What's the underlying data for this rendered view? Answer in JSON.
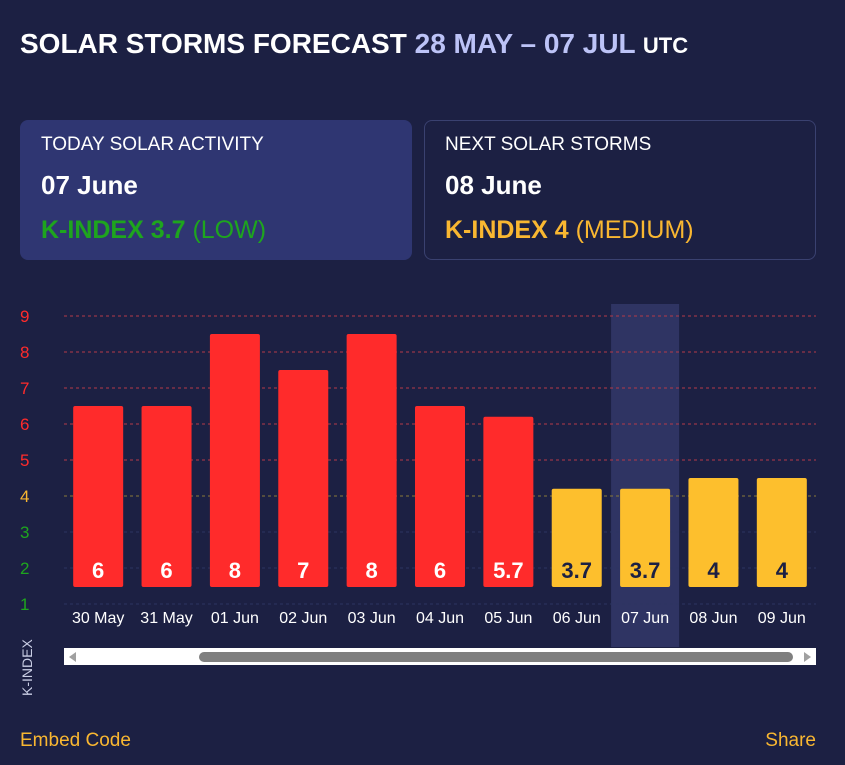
{
  "header": {
    "title": "SOLAR STORMS FORECAST",
    "range": "28 MAY – 07 JUL",
    "tz": "UTC"
  },
  "today_card": {
    "title": "TODAY SOLAR ACTIVITY",
    "date": "07 June",
    "kindex_label": "K-INDEX 3.7",
    "level": "(LOW)",
    "color": "#1ea51e"
  },
  "next_card": {
    "title": "NEXT SOLAR STORMS",
    "date": "08 June",
    "kindex_label": "K-INDEX 4",
    "level": "(MEDIUM)",
    "color": "#f9b731"
  },
  "footer": {
    "embed": "Embed Code",
    "share": "Share"
  },
  "chart_data": {
    "type": "bar",
    "ylabel": "K-INDEX",
    "ylim": [
      1,
      9
    ],
    "yticks": [
      1,
      2,
      3,
      4,
      5,
      6,
      7,
      8,
      9
    ],
    "categories": [
      "30 May",
      "31 May",
      "01 Jun",
      "02 Jun",
      "03 Jun",
      "04 Jun",
      "05 Jun",
      "06 Jun",
      "07 Jun",
      "08 Jun",
      "09 Jun"
    ],
    "values": [
      6,
      6,
      8,
      7,
      8,
      6,
      5.7,
      3.7,
      3.7,
      4,
      4
    ],
    "value_labels": [
      "6",
      "6",
      "8",
      "7",
      "8",
      "6",
      "5.7",
      "3.7",
      "3.7",
      "4",
      "4"
    ],
    "highlighted_category": "07 Jun",
    "colors": {
      "storm": "#ff2b2b",
      "medium": "#fdbf2d",
      "low_tick": "#1ea51e",
      "medium_tick": "#f9b731",
      "high_tick": "#ff2b2b",
      "gridline": "#b33a48"
    }
  }
}
